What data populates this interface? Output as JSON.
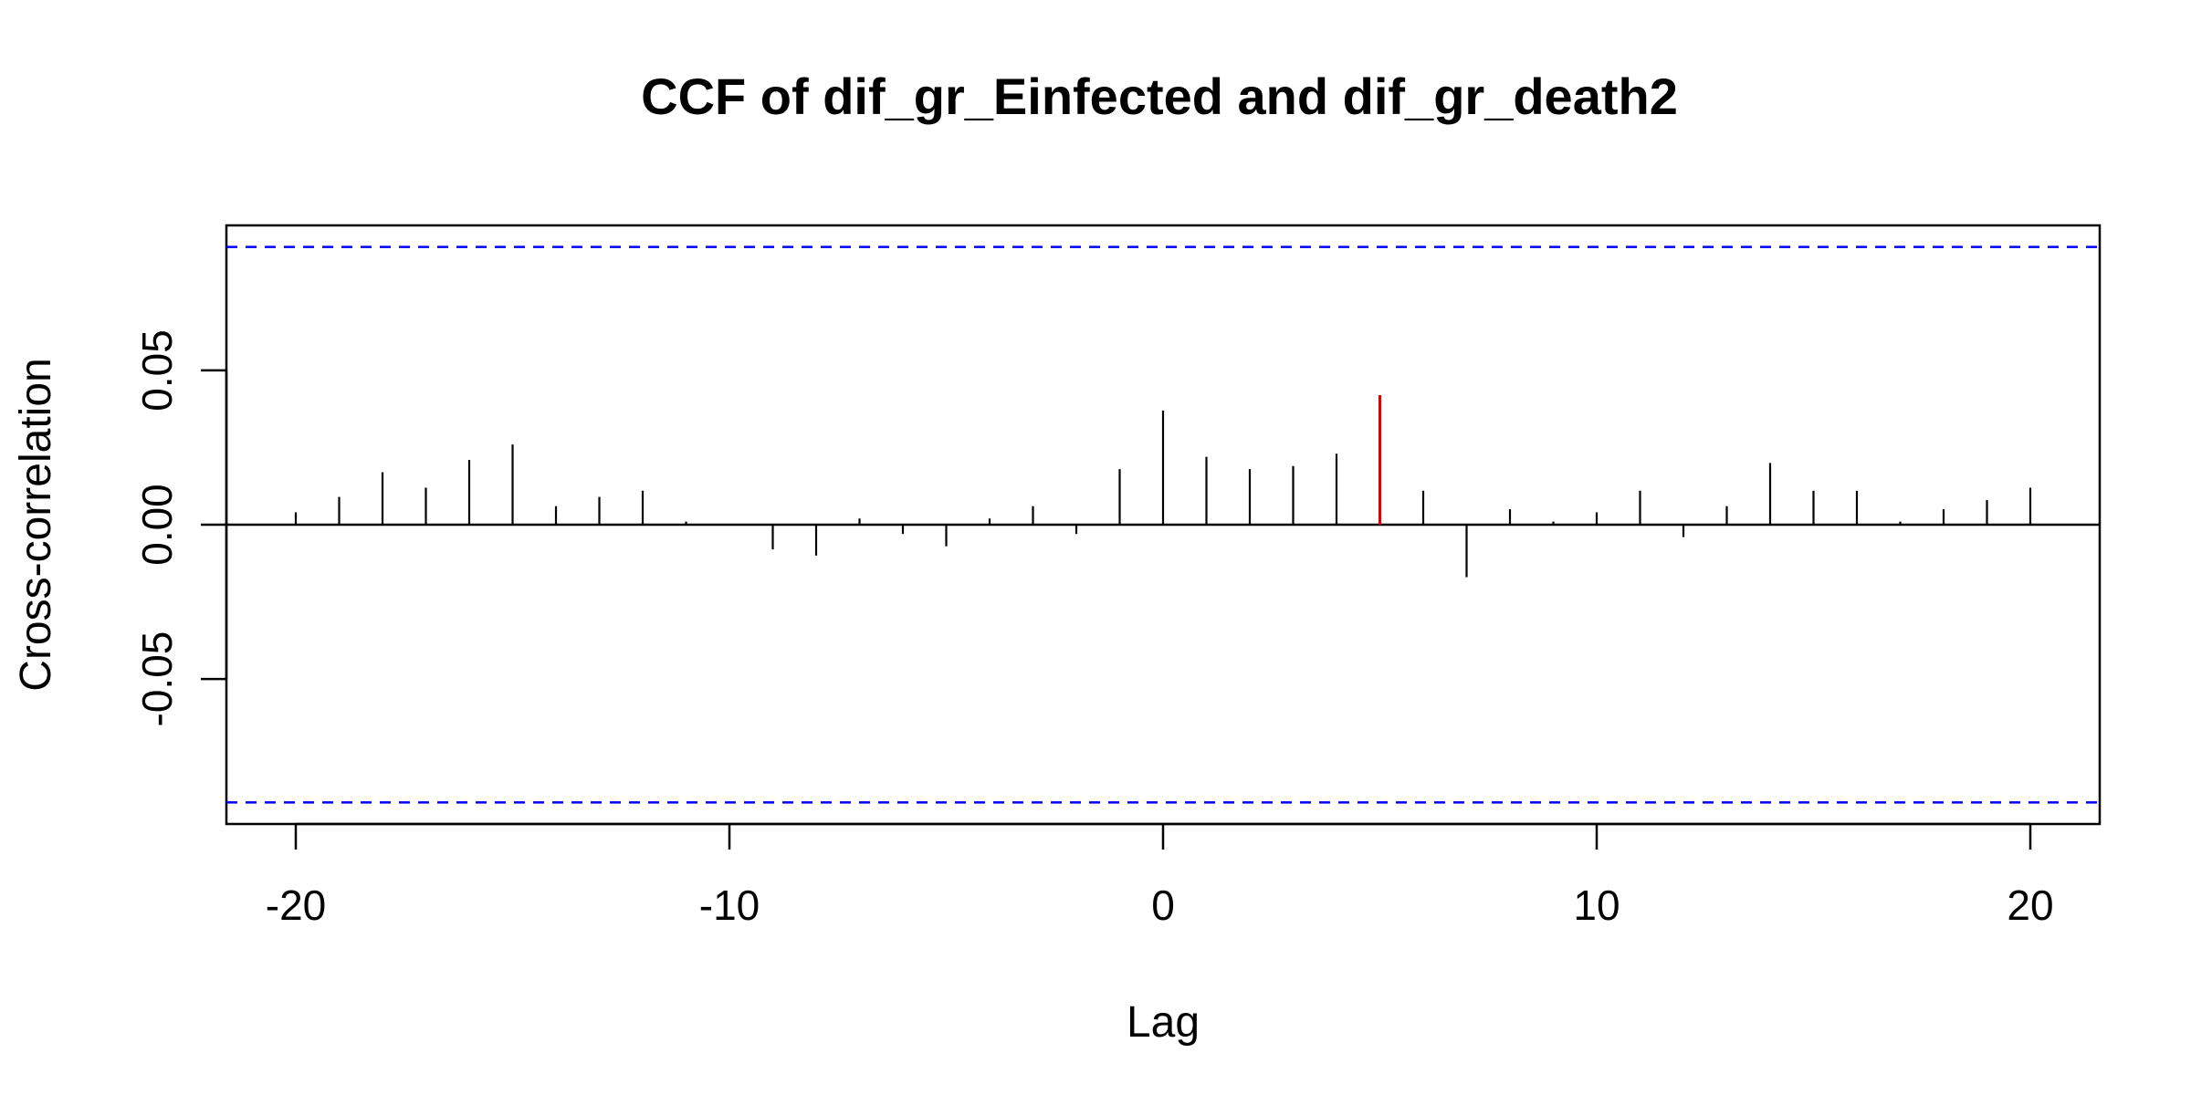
{
  "chart_data": {
    "type": "bar",
    "title": "CCF of dif_gr_Einfected and dif_gr_death2",
    "xlabel": "Lag",
    "ylabel": "Cross-correlation",
    "xlim": [
      -21.6,
      21.6
    ],
    "ylim": [
      -0.097,
      0.097
    ],
    "x_ticks": [
      -20,
      -10,
      0,
      10,
      20
    ],
    "x_tick_labels": [
      "-20",
      "-10",
      "0",
      "10",
      "20"
    ],
    "y_ticks": [
      -0.05,
      0.0,
      0.05
    ],
    "y_tick_labels": [
      "-0.05",
      "0.00",
      "0.05"
    ],
    "confidence_bound": 0.09,
    "confidence_color": "#0000ff",
    "bar_color": "#000000",
    "highlight_color": "#dd0000",
    "highlight_lag": 5,
    "lags": [
      -20,
      -19,
      -18,
      -17,
      -16,
      -15,
      -14,
      -13,
      -12,
      -11,
      -10,
      -9,
      -8,
      -7,
      -6,
      -5,
      -4,
      -3,
      -2,
      -1,
      0,
      1,
      2,
      3,
      4,
      5,
      6,
      7,
      8,
      9,
      10,
      11,
      12,
      13,
      14,
      15,
      16,
      17,
      18,
      19,
      20
    ],
    "values": [
      0.004,
      0.009,
      0.017,
      0.012,
      0.021,
      0.026,
      0.006,
      0.009,
      0.011,
      0.001,
      0.0,
      -0.008,
      -0.01,
      0.002,
      -0.003,
      -0.007,
      0.002,
      0.006,
      -0.003,
      0.018,
      0.037,
      0.022,
      0.018,
      0.019,
      0.023,
      0.042,
      0.011,
      -0.017,
      0.005,
      0.001,
      0.004,
      0.011,
      -0.004,
      0.006,
      0.02,
      0.011,
      0.011,
      0.001,
      0.005,
      0.008,
      0.012
    ],
    "grid": false,
    "legend": "none"
  }
}
